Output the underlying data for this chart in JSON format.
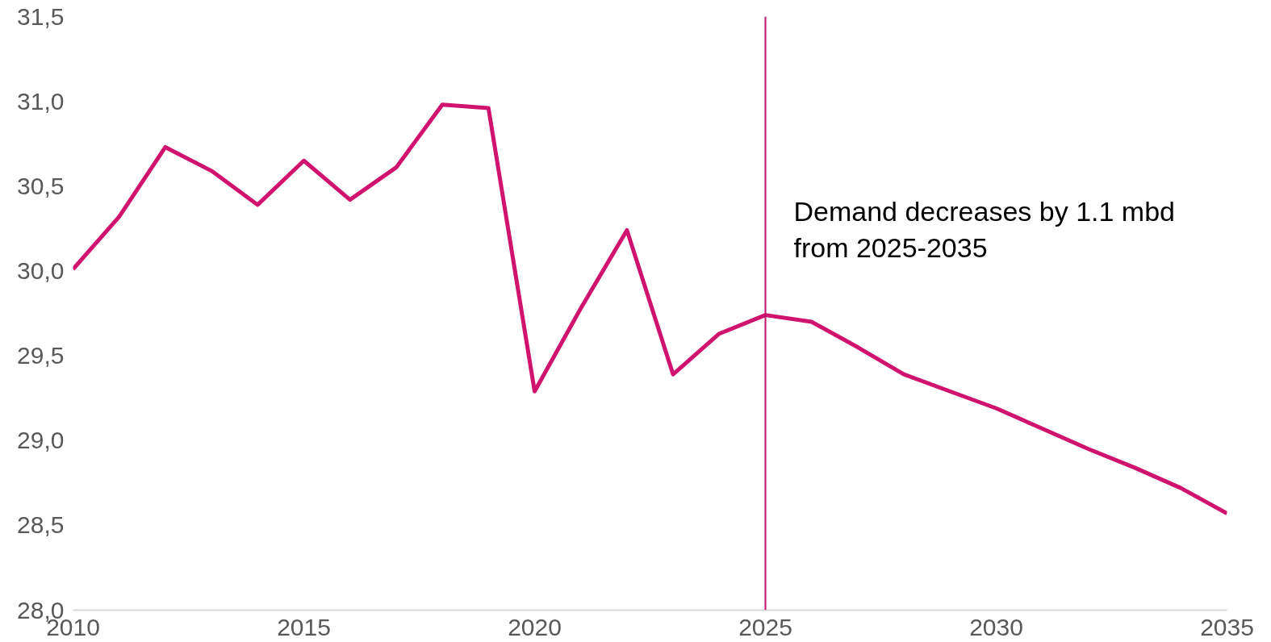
{
  "chart_data": {
    "type": "line",
    "x": [
      2010,
      2011,
      2012,
      2013,
      2014,
      2015,
      2016,
      2017,
      2018,
      2019,
      2020,
      2021,
      2022,
      2023,
      2024,
      2025,
      2026,
      2027,
      2028,
      2029,
      2030,
      2031,
      2032,
      2033,
      2034,
      2035
    ],
    "series": [
      {
        "color": "#d0136e",
        "values": [
          30.01,
          30.32,
          30.73,
          30.59,
          30.39,
          30.65,
          30.42,
          30.61,
          30.98,
          30.96,
          29.29,
          29.78,
          30.24,
          29.39,
          29.63,
          29.74,
          29.7,
          29.55,
          29.39,
          29.29,
          29.19,
          29.07,
          28.95,
          28.84,
          28.72,
          28.57
        ]
      }
    ],
    "xlim": [
      2010,
      2035
    ],
    "xticks": [
      2010,
      2015,
      2020,
      2025,
      2030,
      2035
    ],
    "ylim": [
      28.0,
      31.5
    ],
    "yticks": [
      {
        "value": 28.0,
        "label": "28,0"
      },
      {
        "value": 28.5,
        "label": "28,5"
      },
      {
        "value": 29.0,
        "label": "29,0"
      },
      {
        "value": 29.5,
        "label": "29,5"
      },
      {
        "value": 30.0,
        "label": "30,0"
      },
      {
        "value": 30.5,
        "label": "30,5"
      },
      {
        "value": 31.0,
        "label": "31,0"
      },
      {
        "value": 31.5,
        "label": "31,5"
      }
    ],
    "ref_lines": [
      {
        "axis": "x",
        "value": 2025,
        "label": "Demand decreases by 1.1 mbd\nfrom 2025-2035",
        "color": "#c0106a"
      }
    ],
    "grid": false,
    "marker": "none",
    "line_style": "solid"
  }
}
